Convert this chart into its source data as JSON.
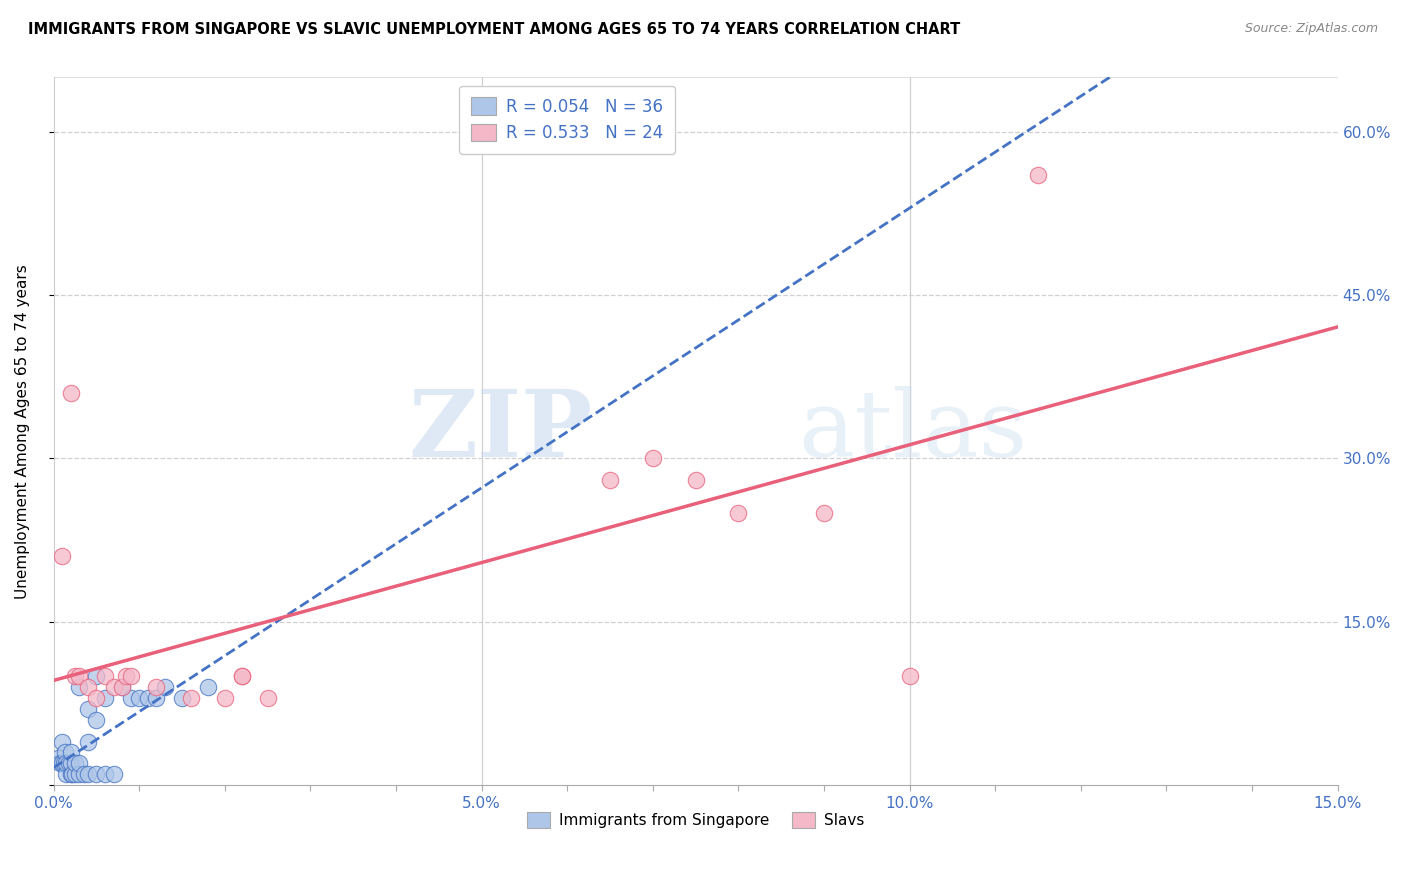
{
  "title": "IMMIGRANTS FROM SINGAPORE VS SLAVIC UNEMPLOYMENT AMONG AGES 65 TO 74 YEARS CORRELATION CHART",
  "source": "Source: ZipAtlas.com",
  "ylabel": "Unemployment Among Ages 65 to 74 years",
  "xlim": [
    0.0,
    0.15
  ],
  "ylim": [
    0.0,
    0.65
  ],
  "legend_R_blue": "0.054",
  "legend_N_blue": "36",
  "legend_R_pink": "0.533",
  "legend_N_pink": "24",
  "blue_color": "#aec6e8",
  "blue_line_color": "#4472c4",
  "pink_color": "#f4b8c8",
  "pink_line_color": "#e8607a",
  "background_color": "#ffffff",
  "grid_color": "#d0d0d0",
  "blue_scatter_x": [
    0.0005,
    0.0008,
    0.001,
    0.001,
    0.0012,
    0.0013,
    0.0015,
    0.0015,
    0.0018,
    0.002,
    0.002,
    0.002,
    0.0022,
    0.0025,
    0.0025,
    0.003,
    0.003,
    0.003,
    0.0035,
    0.004,
    0.004,
    0.004,
    0.005,
    0.005,
    0.005,
    0.006,
    0.006,
    0.007,
    0.008,
    0.009,
    0.01,
    0.011,
    0.012,
    0.013,
    0.015,
    0.018
  ],
  "blue_scatter_y": [
    0.025,
    0.02,
    0.02,
    0.04,
    0.02,
    0.03,
    0.01,
    0.02,
    0.02,
    0.01,
    0.02,
    0.03,
    0.01,
    0.01,
    0.02,
    0.01,
    0.02,
    0.09,
    0.01,
    0.01,
    0.04,
    0.07,
    0.01,
    0.06,
    0.1,
    0.01,
    0.08,
    0.01,
    0.09,
    0.08,
    0.08,
    0.08,
    0.08,
    0.09,
    0.08,
    0.09
  ],
  "pink_scatter_x": [
    0.001,
    0.002,
    0.0025,
    0.003,
    0.004,
    0.005,
    0.006,
    0.007,
    0.008,
    0.0085,
    0.009,
    0.012,
    0.016,
    0.02,
    0.022,
    0.022,
    0.025,
    0.065,
    0.07,
    0.075,
    0.08,
    0.09,
    0.1,
    0.115
  ],
  "pink_scatter_y": [
    0.21,
    0.36,
    0.1,
    0.1,
    0.09,
    0.08,
    0.1,
    0.09,
    0.09,
    0.1,
    0.1,
    0.09,
    0.08,
    0.08,
    0.1,
    0.1,
    0.08,
    0.28,
    0.3,
    0.28,
    0.25,
    0.25,
    0.1,
    0.56
  ],
  "watermark_zip": "ZIP",
  "watermark_atlas": "atlas"
}
